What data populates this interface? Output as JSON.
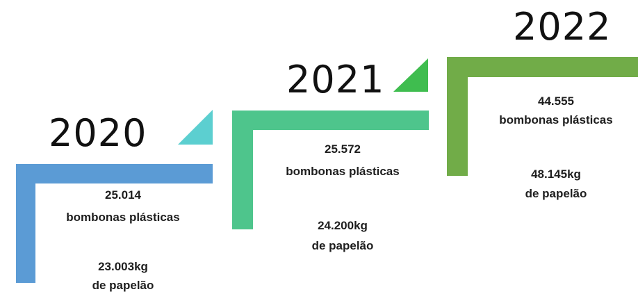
{
  "steps": [
    {
      "year": "2020",
      "color": "#5b9bd5",
      "accent": "#5ccfd0",
      "bombonas_count": "25.014",
      "bombonas_label": "bombonas plásticas",
      "papelao_weight": "23.003kg",
      "papelao_label": "de papelão"
    },
    {
      "year": "2021",
      "color": "#4ec58c",
      "accent": "#3fbd4f",
      "bombonas_count": "25.572",
      "bombonas_label": "bombonas plásticas",
      "papelao_weight": "24.200kg",
      "papelao_label": "de papelão"
    },
    {
      "year": "2022",
      "color": "#71ac48",
      "accent": "#71ac48",
      "bombonas_count": "44.555",
      "bombonas_label": "bombonas plásticas",
      "papelao_weight": "48.145kg",
      "papelao_label": "de papelão"
    }
  ]
}
